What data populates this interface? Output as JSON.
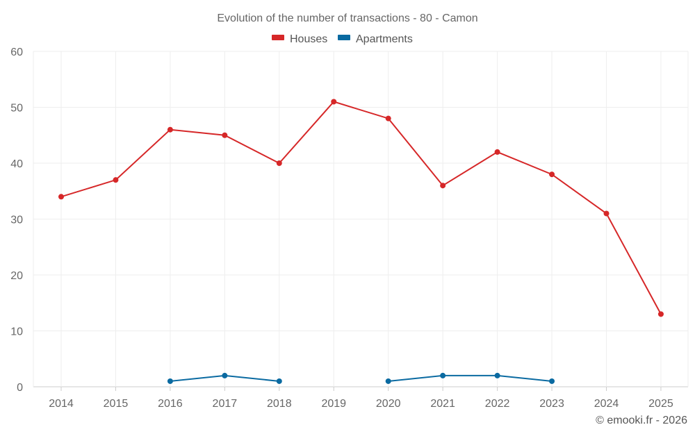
{
  "chart_data": {
    "type": "line",
    "title": "Evolution of the number of transactions - 80 - Camon",
    "xlabel": "",
    "ylabel": "",
    "categories": [
      "2014",
      "2015",
      "2016",
      "2017",
      "2018",
      "2019",
      "2020",
      "2021",
      "2022",
      "2023",
      "2024",
      "2025"
    ],
    "ylim": [
      0,
      60
    ],
    "yticks": [
      0,
      10,
      20,
      30,
      40,
      50,
      60
    ],
    "grid": true,
    "legend_position": "top-center",
    "series": [
      {
        "name": "Houses",
        "color": "#d62728",
        "values": [
          34,
          37,
          46,
          45,
          40,
          51,
          48,
          36,
          42,
          38,
          31,
          13
        ]
      },
      {
        "name": "Apartments",
        "color": "#0a6aa1",
        "values": [
          null,
          null,
          1,
          2,
          1,
          null,
          1,
          2,
          2,
          1,
          null,
          null
        ]
      }
    ]
  },
  "credit": "© emooki.fr - 2026"
}
